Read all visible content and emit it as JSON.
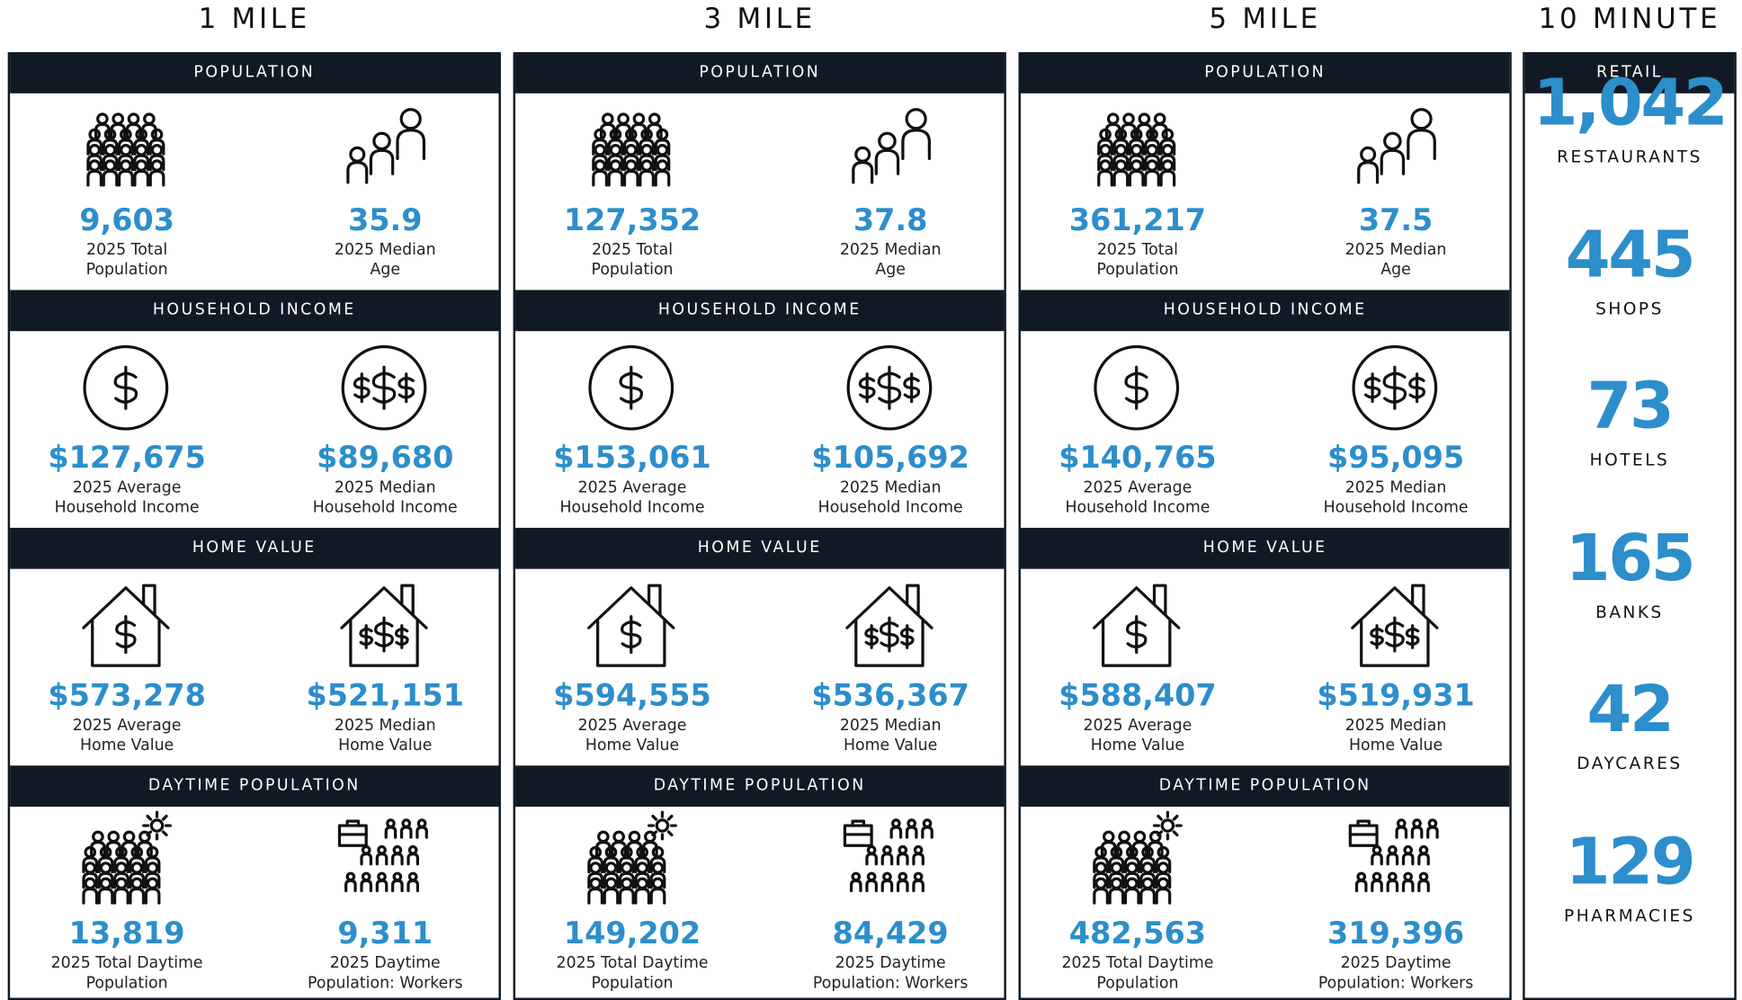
{
  "columns": [
    {
      "title": "1 MILE",
      "sections": [
        {
          "header": "POPULATION",
          "items": [
            {
              "value": "9,603",
              "label": [
                "2025 Total",
                "Population"
              ]
            },
            {
              "value": "35.9",
              "label": [
                "2025 Median",
                "Age"
              ]
            }
          ]
        },
        {
          "header": "HOUSEHOLD INCOME",
          "items": [
            {
              "value": "$127,675",
              "label": [
                "2025 Average",
                "Household Income"
              ]
            },
            {
              "value": "$89,680",
              "label": [
                "2025 Median",
                "Household Income"
              ]
            }
          ]
        },
        {
          "header": "HOME VALUE",
          "items": [
            {
              "value": "$573,278",
              "label": [
                "2025 Average",
                "Home Value"
              ]
            },
            {
              "value": "$521,151",
              "label": [
                "2025 Median",
                "Home Value"
              ]
            }
          ]
        },
        {
          "header": "DAYTIME POPULATION",
          "items": [
            {
              "value": "13,819",
              "label": [
                "2025 Total Daytime",
                "Population"
              ]
            },
            {
              "value": "9,311",
              "label": [
                "2025 Daytime",
                "Population: Workers"
              ]
            }
          ]
        }
      ]
    },
    {
      "title": "3 MILE",
      "sections": [
        {
          "header": "POPULATION",
          "items": [
            {
              "value": "127,352",
              "label": [
                "2025 Total",
                "Population"
              ]
            },
            {
              "value": "37.8",
              "label": [
                "2025 Median",
                "Age"
              ]
            }
          ]
        },
        {
          "header": "HOUSEHOLD INCOME",
          "items": [
            {
              "value": "$153,061",
              "label": [
                "2025 Average",
                "Household Income"
              ]
            },
            {
              "value": "$105,692",
              "label": [
                "2025 Median",
                "Household Income"
              ]
            }
          ]
        },
        {
          "header": "HOME VALUE",
          "items": [
            {
              "value": "$594,555",
              "label": [
                "2025 Average",
                "Home Value"
              ]
            },
            {
              "value": "$536,367",
              "label": [
                "2025 Median",
                "Home Value"
              ]
            }
          ]
        },
        {
          "header": "DAYTIME POPULATION",
          "items": [
            {
              "value": "149,202",
              "label": [
                "2025 Total Daytime",
                "Population"
              ]
            },
            {
              "value": "84,429",
              "label": [
                "2025 Daytime",
                "Population: Workers"
              ]
            }
          ]
        }
      ]
    },
    {
      "title": "5 MILE",
      "sections": [
        {
          "header": "POPULATION",
          "items": [
            {
              "value": "361,217",
              "label": [
                "2025 Total",
                "Population"
              ]
            },
            {
              "value": "37.5",
              "label": [
                "2025 Median",
                "Age"
              ]
            }
          ]
        },
        {
          "header": "HOUSEHOLD INCOME",
          "items": [
            {
              "value": "$140,765",
              "label": [
                "2025 Average",
                "Household Income"
              ]
            },
            {
              "value": "$95,095",
              "label": [
                "2025 Median",
                "Household Income"
              ]
            }
          ]
        },
        {
          "header": "HOME VALUE",
          "items": [
            {
              "value": "$588,407",
              "label": [
                "2025 Average",
                "Home Value"
              ]
            },
            {
              "value": "$519,931",
              "label": [
                "2025 Median",
                "Home Value"
              ]
            }
          ]
        },
        {
          "header": "DAYTIME POPULATION",
          "items": [
            {
              "value": "482,563",
              "label": [
                "2025 Total Daytime",
                "Population"
              ]
            },
            {
              "value": "319,396",
              "label": [
                "2025 Daytime",
                "Population: Workers"
              ]
            }
          ]
        }
      ]
    }
  ],
  "retail": {
    "title": "10 MINUTE",
    "header": "RETAIL",
    "items": [
      {
        "value": "1,042",
        "label": "RESTAURANTS"
      },
      {
        "value": "445",
        "label": "SHOPS"
      },
      {
        "value": "73",
        "label": "HOTELS"
      },
      {
        "value": "165",
        "label": "BANKS"
      },
      {
        "value": "42",
        "label": "DAYCARES"
      },
      {
        "value": "129",
        "label": "PHARMACIES"
      }
    ]
  }
}
